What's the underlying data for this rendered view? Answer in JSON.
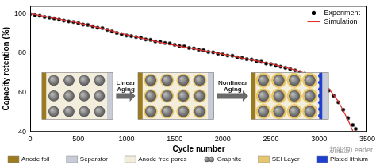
{
  "chart_data": {
    "type": "line",
    "x_label": "Cycle number",
    "y_label": "Capacity retention (%)",
    "xlim": [
      0,
      3500
    ],
    "xticks": [
      0,
      500,
      1000,
      1500,
      2000,
      2500,
      3000,
      3500
    ],
    "ylim": [
      40,
      104
    ],
    "yticks": [
      40,
      60,
      80,
      100
    ],
    "grid": false,
    "legend": "upper right",
    "series": [
      {
        "name": "Experiment",
        "type": "scatter",
        "marker": "circle",
        "color": "#000000",
        "x": [
          0,
          50,
          100,
          150,
          200,
          250,
          300,
          350,
          400,
          450,
          500,
          550,
          600,
          650,
          700,
          750,
          800,
          850,
          900,
          950,
          1000,
          1050,
          1100,
          1150,
          1200,
          1250,
          1300,
          1350,
          1400,
          1450,
          1500,
          1550,
          1600,
          1650,
          1700,
          1750,
          1800,
          1850,
          1900,
          1950,
          2000,
          2050,
          2100,
          2150,
          2200,
          2250,
          2300,
          2350,
          2400,
          2450,
          2500,
          2550,
          2600,
          2650,
          2700,
          2750,
          2800,
          2850,
          2900,
          2950,
          3000,
          3050,
          3100,
          3150,
          3200,
          3250,
          3300,
          3350,
          3380
        ],
        "values": [
          99.8,
          99.2,
          98.9,
          98.3,
          98.0,
          97.6,
          97.0,
          96.5,
          96.1,
          95.8,
          95.2,
          94.5,
          94.3,
          93.6,
          92.9,
          92.7,
          91.8,
          91.0,
          90.2,
          89.6,
          88.9,
          88.6,
          88.1,
          87.8,
          86.9,
          86.7,
          85.9,
          85.8,
          85.1,
          84.9,
          84.2,
          83.6,
          83.4,
          82.6,
          82.4,
          81.7,
          81.5,
          80.6,
          80.4,
          79.7,
          79.4,
          78.8,
          78.7,
          77.8,
          77.5,
          76.9,
          76.7,
          75.8,
          75.6,
          74.7,
          74.4,
          73.6,
          73.1,
          72.5,
          71.8,
          71.2,
          70.3,
          69.5,
          68.4,
          67.0,
          65.2,
          63.4,
          61.0,
          58.3,
          55.0,
          51.2,
          47.0,
          43.5,
          41.5
        ]
      },
      {
        "name": "Simulation",
        "type": "line",
        "line_style": "solid",
        "color": "#e03030",
        "x": [
          0,
          250,
          500,
          750,
          1000,
          1250,
          1500,
          1750,
          2000,
          2250,
          2500,
          2750,
          2900,
          3000,
          3100,
          3200,
          3300,
          3350
        ],
        "values": [
          100,
          97.8,
          95.3,
          92.5,
          89.3,
          86.5,
          84.0,
          81.7,
          79.5,
          77.0,
          74.6,
          71.5,
          69.0,
          66.5,
          62.0,
          55.5,
          46.0,
          40.5
        ]
      }
    ],
    "annotations": [
      "Linear Aging",
      "Nonlinear Aging"
    ],
    "watermark": "新能源Leader",
    "schematic_legend": [
      {
        "label": "Anode foil",
        "color": "#9c7a1e"
      },
      {
        "label": "Separator",
        "color": "#c8ccd6"
      },
      {
        "label": "Anode free pores",
        "color": "#f3eedc"
      },
      {
        "label": "Graphite",
        "color": "#555555"
      },
      {
        "label": "SEI Layer",
        "color": "#e8c66a"
      },
      {
        "label": "Plated lithium",
        "color": "#1f3fd0"
      }
    ]
  }
}
